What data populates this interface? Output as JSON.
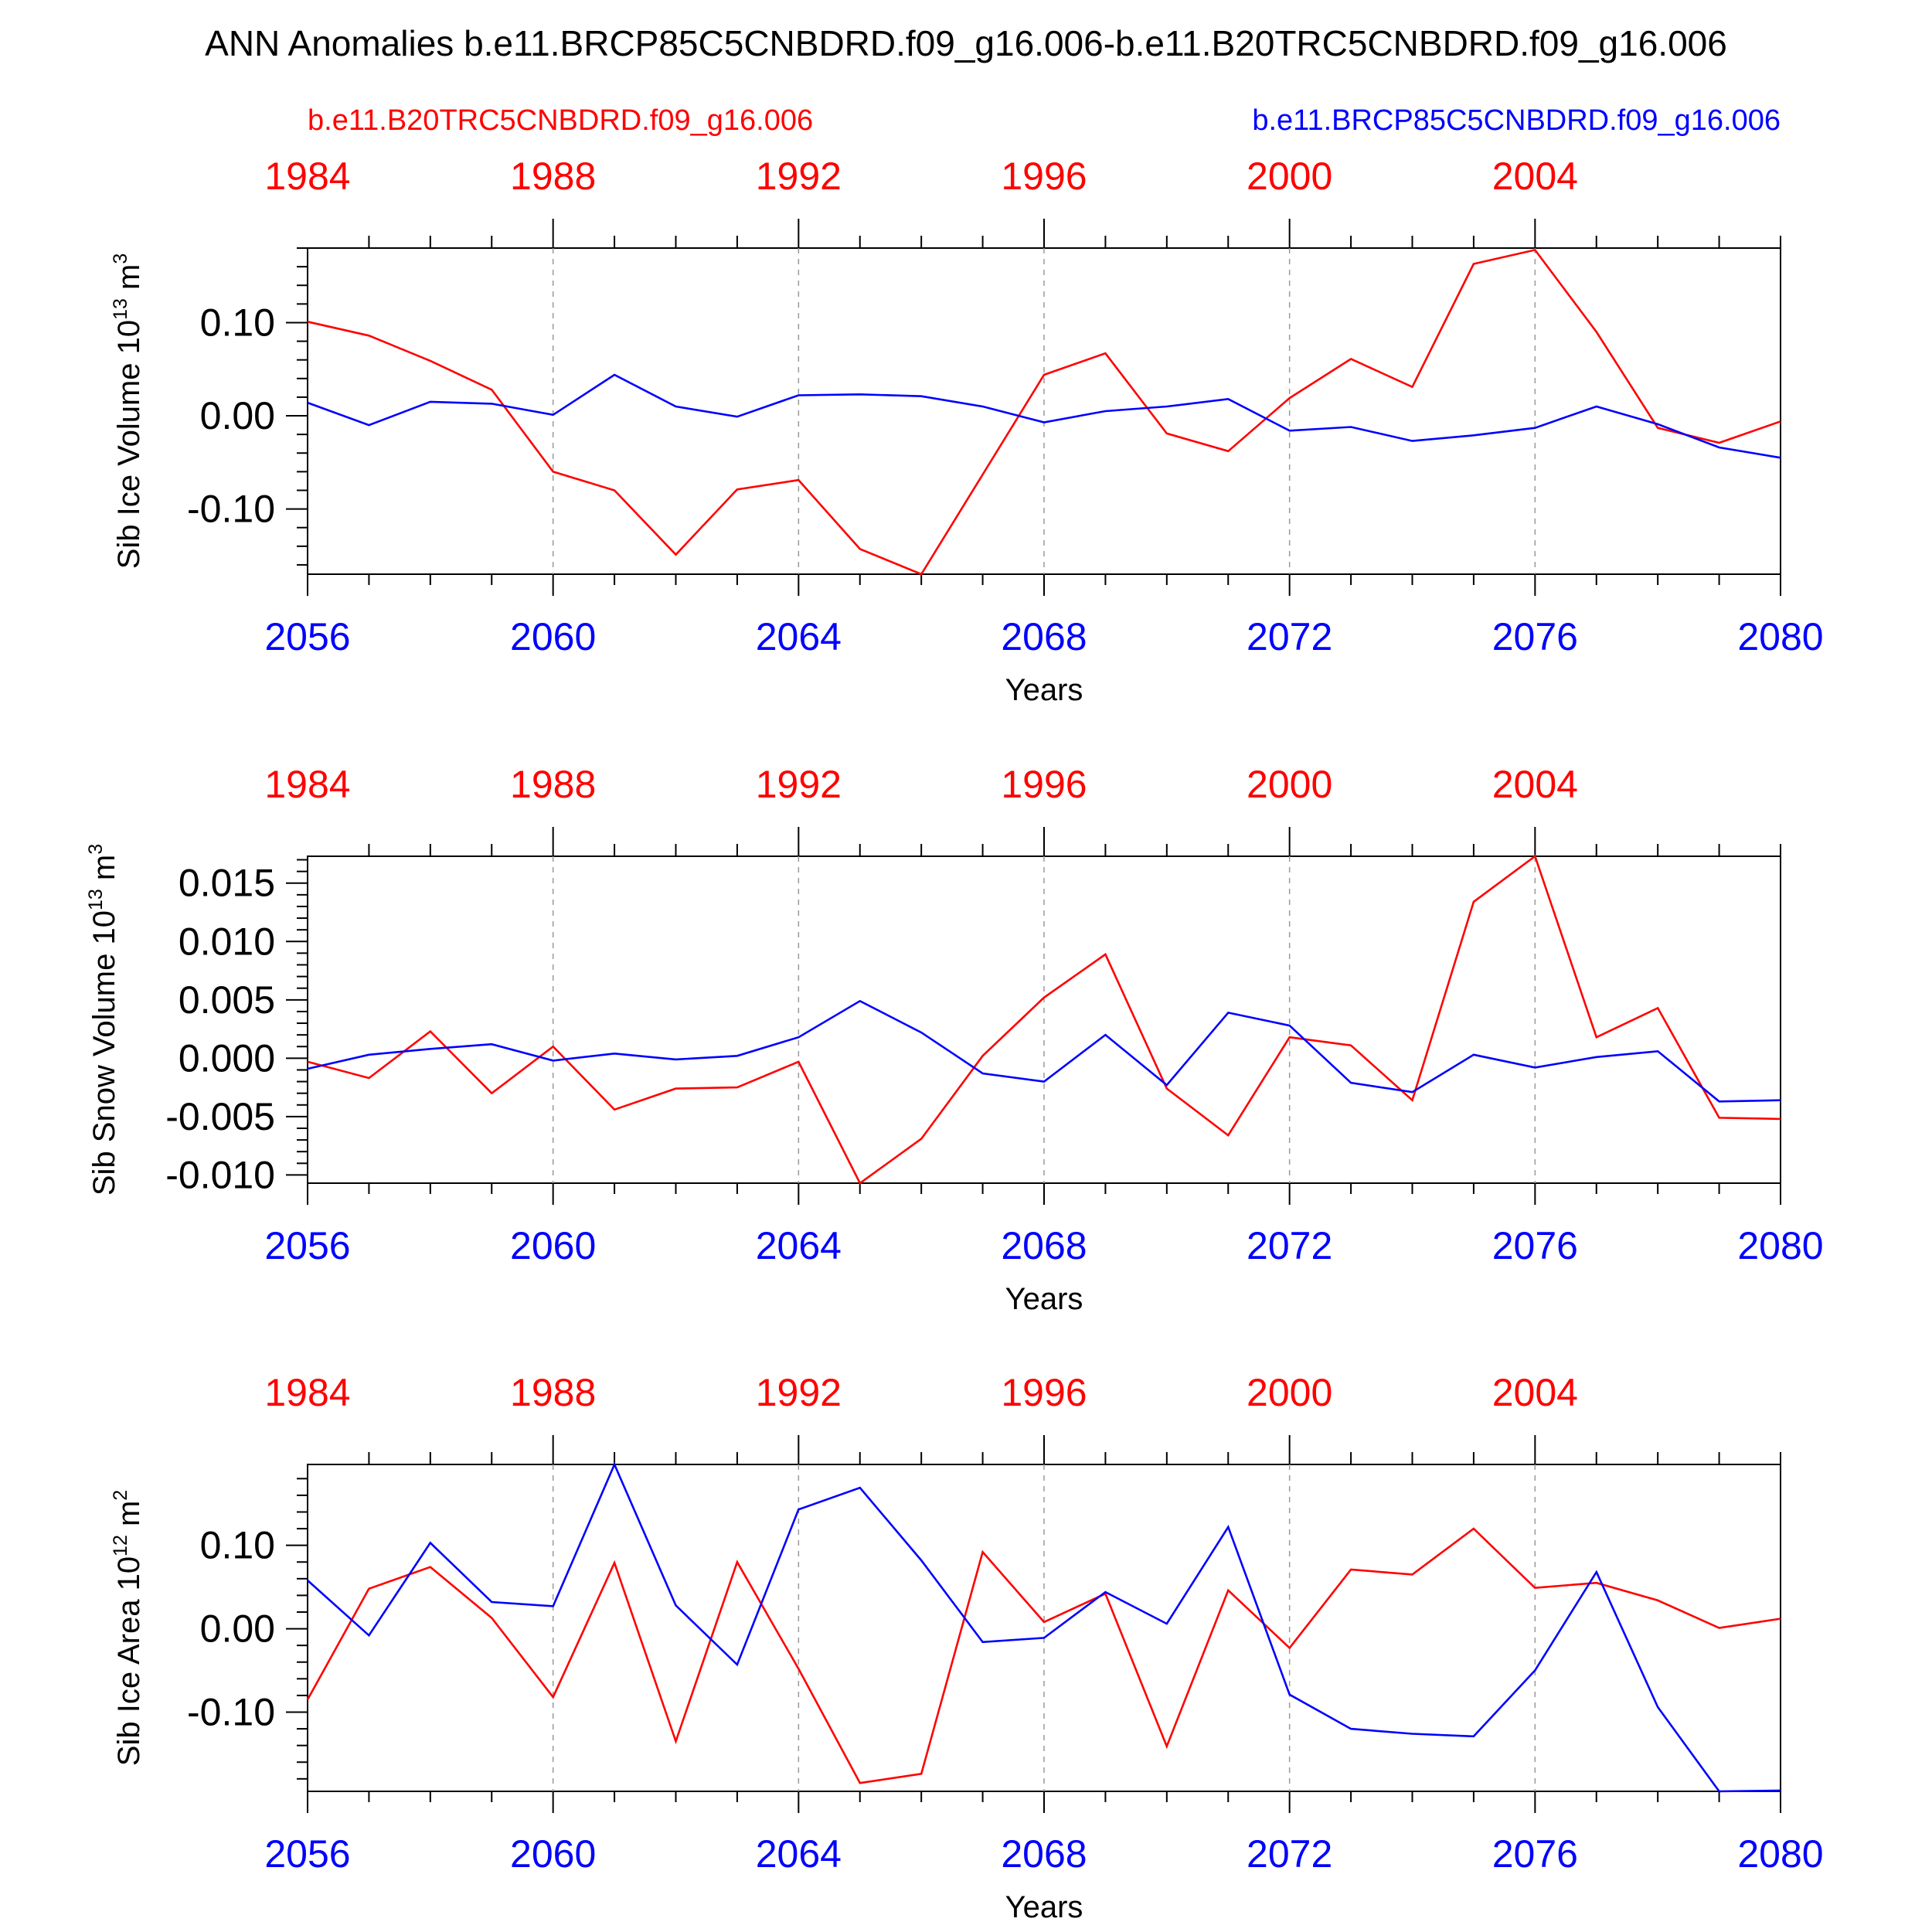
{
  "title": "ANN Anomalies b.e11.BRCP85C5CNBDRD.f09_g16.006-b.e11.B20TRC5CNBDRD.f09_g16.006",
  "legend": {
    "left": "b.e11.B20TRC5CNBDRD.f09_g16.006",
    "right": "b.e11.BRCP85C5CNBDRD.f09_g16.006"
  },
  "colors": {
    "historical": "#ff0000",
    "future": "#0000ff",
    "axis": "#000000"
  },
  "chart_data": [
    {
      "type": "line",
      "ylabel": "Sib Ice Volume 10",
      "ylabel_sup": "13",
      "ylabel_unit": "m",
      "ylabel_unit_sup": "3",
      "xlabel": "Years",
      "xlim": [
        2056,
        2080
      ],
      "ylim": [
        -0.17,
        0.18
      ],
      "yticks": [
        -0.1,
        0.0,
        0.1
      ],
      "ytick_labels": [
        "-0.10",
        "0.00",
        "0.10"
      ],
      "xticks_bottom": [
        "2056",
        "2060",
        "2064",
        "2068",
        "2072",
        "2076",
        "2080"
      ],
      "xticks_top": [
        "1984",
        "1988",
        "1992",
        "1996",
        "2000",
        "2004"
      ],
      "x": [
        2056,
        2057,
        2058,
        2059,
        2060,
        2061,
        2062,
        2063,
        2064,
        2065,
        2066,
        2067,
        2068,
        2069,
        2070,
        2071,
        2072,
        2073,
        2074,
        2075,
        2076,
        2077,
        2078,
        2079,
        2080
      ],
      "series": [
        {
          "name": "b.e11.B20TRC5CNBDRD.f09_g16.006",
          "color": "#ff0000",
          "values": [
            0.101,
            0.086,
            0.059,
            0.028,
            -0.06,
            -0.08,
            -0.149,
            -0.079,
            -0.069,
            -0.143,
            -0.17,
            -0.063,
            0.044,
            0.067,
            -0.019,
            -0.038,
            0.019,
            0.061,
            0.031,
            0.163,
            0.178,
            0.09,
            -0.013,
            -0.029,
            -0.006
          ]
        },
        {
          "name": "b.e11.BRCP85C5CNBDRD.f09_g16.006",
          "color": "#0000ff",
          "values": [
            0.014,
            -0.01,
            0.015,
            0.013,
            0.001,
            0.044,
            0.01,
            -0.001,
            0.022,
            0.023,
            0.021,
            0.01,
            -0.007,
            0.005,
            0.01,
            0.018,
            -0.016,
            -0.012,
            -0.027,
            -0.021,
            -0.013,
            0.01,
            -0.009,
            -0.034,
            -0.045
          ]
        }
      ]
    },
    {
      "type": "line",
      "ylabel": "Sib Snow Volume 10",
      "ylabel_sup": "13",
      "ylabel_unit": "m",
      "ylabel_unit_sup": "3",
      "xlabel": "Years",
      "xlim": [
        2056,
        2080
      ],
      "ylim": [
        -0.0107,
        0.0173
      ],
      "yticks": [
        -0.01,
        -0.005,
        0.0,
        0.005,
        0.01,
        0.015
      ],
      "ytick_labels": [
        "-0.010",
        "-0.005",
        "0.000",
        "0.005",
        "0.010",
        "0.015"
      ],
      "xticks_bottom": [
        "2056",
        "2060",
        "2064",
        "2068",
        "2072",
        "2076",
        "2080"
      ],
      "xticks_top": [
        "1984",
        "1988",
        "1992",
        "1996",
        "2000",
        "2004"
      ],
      "x": [
        2056,
        2057,
        2058,
        2059,
        2060,
        2061,
        2062,
        2063,
        2064,
        2065,
        2066,
        2067,
        2068,
        2069,
        2070,
        2071,
        2072,
        2073,
        2074,
        2075,
        2076,
        2077,
        2078,
        2079,
        2080
      ],
      "series": [
        {
          "name": "b.e11.B20TRC5CNBDRD.f09_g16.006",
          "color": "#ff0000",
          "values": [
            -0.0003,
            -0.0017,
            0.0023,
            -0.003,
            0.001,
            -0.0044,
            -0.0026,
            -0.0025,
            -0.0003,
            -0.0107,
            -0.0069,
            0.0002,
            0.0052,
            0.0089,
            -0.0026,
            -0.0066,
            0.0018,
            0.0011,
            -0.0036,
            0.0134,
            0.0173,
            0.0018,
            0.0043,
            -0.0051,
            -0.0052
          ]
        },
        {
          "name": "b.e11.BRCP85C5CNBDRD.f09_g16.006",
          "color": "#0000ff",
          "values": [
            -0.0009,
            0.0003,
            0.0008,
            0.0012,
            -0.0002,
            0.0004,
            -0.0001,
            0.0002,
            0.0018,
            0.0049,
            0.0022,
            -0.0013,
            -0.002,
            0.002,
            -0.0023,
            0.0039,
            0.0028,
            -0.0021,
            -0.0029,
            0.0003,
            -0.0008,
            0.0001,
            0.0006,
            -0.0037,
            -0.0036
          ]
        }
      ]
    },
    {
      "type": "line",
      "ylabel": "Sib Ice Area 10",
      "ylabel_sup": "12",
      "ylabel_unit": "m",
      "ylabel_unit_sup": "2",
      "xlabel": "Years",
      "xlim": [
        2056,
        2080
      ],
      "ylim": [
        -0.195,
        0.197
      ],
      "yticks": [
        -0.1,
        0.0,
        0.1
      ],
      "ytick_labels": [
        "-0.10",
        "0.00",
        "0.10"
      ],
      "xticks_bottom": [
        "2056",
        "2060",
        "2064",
        "2068",
        "2072",
        "2076",
        "2080"
      ],
      "xticks_top": [
        "1984",
        "1988",
        "1992",
        "1996",
        "2000",
        "2004"
      ],
      "x": [
        2056,
        2057,
        2058,
        2059,
        2060,
        2061,
        2062,
        2063,
        2064,
        2065,
        2066,
        2067,
        2068,
        2069,
        2070,
        2071,
        2072,
        2073,
        2074,
        2075,
        2076,
        2077,
        2078,
        2079,
        2080
      ],
      "series": [
        {
          "name": "b.e11.B20TRC5CNBDRD.f09_g16.006",
          "color": "#ff0000",
          "values": [
            -0.085,
            0.048,
            0.074,
            0.013,
            -0.082,
            0.079,
            -0.135,
            0.08,
            -0.048,
            -0.185,
            -0.174,
            0.092,
            0.008,
            0.042,
            -0.141,
            0.046,
            -0.023,
            0.071,
            0.065,
            0.12,
            0.049,
            0.055,
            0.034,
            0.001,
            0.012
          ]
        },
        {
          "name": "b.e11.BRCP85C5CNBDRD.f09_g16.006",
          "color": "#0000ff",
          "values": [
            0.058,
            -0.008,
            0.103,
            0.032,
            0.027,
            0.197,
            0.028,
            -0.043,
            0.143,
            0.169,
            0.082,
            -0.016,
            -0.011,
            0.044,
            0.006,
            0.122,
            -0.079,
            -0.12,
            -0.126,
            -0.129,
            -0.05,
            0.068,
            -0.094,
            -0.195,
            -0.194
          ]
        }
      ]
    }
  ]
}
